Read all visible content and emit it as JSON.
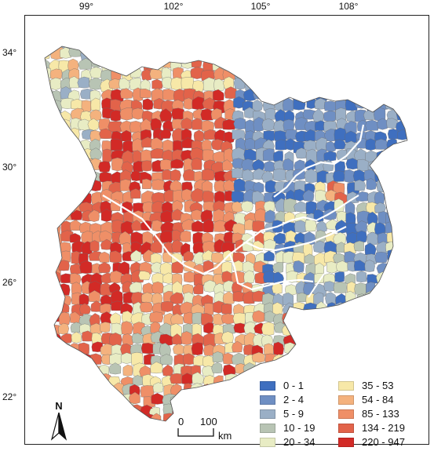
{
  "map": {
    "lon_ticks": [
      "99°",
      "102°",
      "105°",
      "108°"
    ],
    "lat_ticks": [
      "34°",
      "30°",
      "26°",
      "22°"
    ]
  },
  "legend": [
    {
      "label": "0 - 1",
      "color": "#3f6fbf"
    },
    {
      "label": "2 - 4",
      "color": "#6f8fc3"
    },
    {
      "label": "5 - 9",
      "color": "#9aafc6"
    },
    {
      "label": "10 - 19",
      "color": "#b8c4b4"
    },
    {
      "label": "20 - 34",
      "color": "#e8ecc4"
    },
    {
      "label": "35 - 53",
      "color": "#f7e8a8"
    },
    {
      "label": "54 - 84",
      "color": "#f4b27e"
    },
    {
      "label": "85 - 133",
      "color": "#ef8f67"
    },
    {
      "label": "134 - 219",
      "color": "#e2634a"
    },
    {
      "label": "220 - 947",
      "color": "#d22a26"
    }
  ],
  "scale_bar": {
    "zero": "0",
    "distance": "100",
    "unit": "km"
  },
  "north_arrow": {
    "label": "N"
  }
}
